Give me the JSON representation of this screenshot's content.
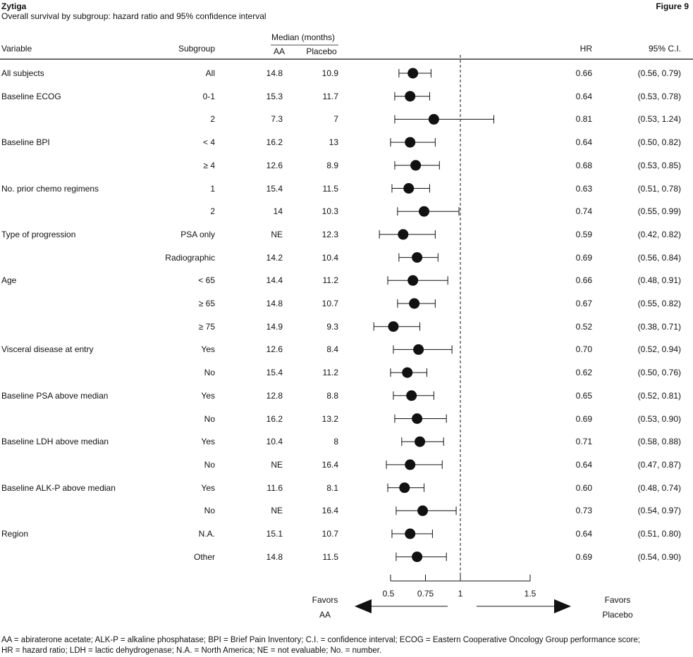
{
  "header": {
    "title": "Zytiga",
    "subtitle": "Overall survival by subgroup: hazard ratio and 95% confidence interval",
    "figure_label": "Figure 9"
  },
  "columns": {
    "variable": "Variable",
    "subgroup": "Subgroup",
    "median_group": "Median (months)",
    "aa": "AA",
    "placebo": "Placebo",
    "hr": "HR",
    "ci": "95%  C.I."
  },
  "chart_data": {
    "type": "forest",
    "xlim": [
      0.5,
      1.5
    ],
    "reference_line": 1,
    "x_ticks": [
      0.5,
      0.75,
      1,
      1.5
    ],
    "x_tick_labels": [
      "0.5",
      "0.75",
      "1",
      "1.5"
    ],
    "favors_left": [
      "Favors",
      "AA"
    ],
    "favors_right": [
      "Favors",
      "Placebo"
    ],
    "rows": [
      {
        "variable": "All subjects",
        "subgroup": "All",
        "aa": "14.8",
        "placebo": "10.9",
        "hr": 0.66,
        "lo": 0.56,
        "hi": 0.79,
        "hr_text": "0.66",
        "ci_text": "(0.56,  0.79)"
      },
      {
        "variable": "Baseline ECOG",
        "subgroup": "0-1",
        "aa": "15.3",
        "placebo": "11.7",
        "hr": 0.64,
        "lo": 0.53,
        "hi": 0.78,
        "hr_text": "0.64",
        "ci_text": "(0.53,  0.78)"
      },
      {
        "variable": "",
        "subgroup": "2",
        "aa": "7.3",
        "placebo": "7",
        "hr": 0.81,
        "lo": 0.53,
        "hi": 1.24,
        "hr_text": "0.81",
        "ci_text": "(0.53,  1.24)"
      },
      {
        "variable": "Baseline BPI",
        "subgroup": "< 4",
        "aa": "16.2",
        "placebo": "13",
        "hr": 0.64,
        "lo": 0.5,
        "hi": 0.82,
        "hr_text": "0.64",
        "ci_text": "(0.50,  0.82)"
      },
      {
        "variable": "",
        "subgroup": "≥ 4",
        "aa": "12.6",
        "placebo": "8.9",
        "hr": 0.68,
        "lo": 0.53,
        "hi": 0.85,
        "hr_text": "0.68",
        "ci_text": "(0.53,  0.85)"
      },
      {
        "variable": "No. prior chemo regimens",
        "subgroup": "1",
        "aa": "15.4",
        "placebo": "11.5",
        "hr": 0.63,
        "lo": 0.51,
        "hi": 0.78,
        "hr_text": "0.63",
        "ci_text": "(0.51, 0.78)"
      },
      {
        "variable": "",
        "subgroup": "2",
        "aa": "14",
        "placebo": "10.3",
        "hr": 0.74,
        "lo": 0.55,
        "hi": 0.99,
        "hr_text": "0.74",
        "ci_text": "(0.55, 0.99)"
      },
      {
        "variable": "Type of progression",
        "subgroup": "PSA only",
        "aa": "NE",
        "placebo": "12.3",
        "hr": 0.59,
        "lo": 0.42,
        "hi": 0.82,
        "hr_text": "0.59",
        "ci_text": "(0.42,  0.82)"
      },
      {
        "variable": "",
        "subgroup": "Radiographic",
        "aa": "14.2",
        "placebo": "10.4",
        "hr": 0.69,
        "lo": 0.56,
        "hi": 0.84,
        "hr_text": "0.69",
        "ci_text": "(0.56,  0.84)"
      },
      {
        "variable": "Age",
        "subgroup": "< 65",
        "aa": "14.4",
        "placebo": "11.2",
        "hr": 0.66,
        "lo": 0.48,
        "hi": 0.91,
        "hr_text": "0.66",
        "ci_text": "(0.48,  0.91)"
      },
      {
        "variable": "",
        "subgroup": "≥ 65",
        "aa": "14.8",
        "placebo": "10.7",
        "hr": 0.67,
        "lo": 0.55,
        "hi": 0.82,
        "hr_text": "0.67",
        "ci_text": "(0.55,  0.82)"
      },
      {
        "variable": "",
        "subgroup": "≥ 75",
        "aa": "14.9",
        "placebo": "9.3",
        "hr": 0.52,
        "lo": 0.38,
        "hi": 0.71,
        "hr_text": "0.52",
        "ci_text": "(0.38,  0.71)"
      },
      {
        "variable": "Visceral disease at entry",
        "subgroup": "Yes",
        "aa": "12.6",
        "placebo": "8.4",
        "hr": 0.7,
        "lo": 0.52,
        "hi": 0.94,
        "hr_text": "0.70",
        "ci_text": "(0.52,  0.94)"
      },
      {
        "variable": "",
        "subgroup": "No",
        "aa": "15.4",
        "placebo": "11.2",
        "hr": 0.62,
        "lo": 0.5,
        "hi": 0.76,
        "hr_text": "0.62",
        "ci_text": "(0.50,  0.76)"
      },
      {
        "variable": "Baseline PSA above median",
        "subgroup": "Yes",
        "aa": "12.8",
        "placebo": "8.8",
        "hr": 0.65,
        "lo": 0.52,
        "hi": 0.81,
        "hr_text": "0.65",
        "ci_text": "(0.52,  0.81)"
      },
      {
        "variable": "",
        "subgroup": "No",
        "aa": "16.2",
        "placebo": "13.2",
        "hr": 0.69,
        "lo": 0.53,
        "hi": 0.9,
        "hr_text": "0.69",
        "ci_text": "(0.53,  0.90)"
      },
      {
        "variable": "Baseline LDH above median",
        "subgroup": "Yes",
        "aa": "10.4",
        "placebo": "8",
        "hr": 0.71,
        "lo": 0.58,
        "hi": 0.88,
        "hr_text": "0.71",
        "ci_text": "(0.58,  0.88)"
      },
      {
        "variable": "",
        "subgroup": "No",
        "aa": "NE",
        "placebo": "16.4",
        "hr": 0.64,
        "lo": 0.47,
        "hi": 0.87,
        "hr_text": "0.64",
        "ci_text": "(0.47,  0.87)"
      },
      {
        "variable": "Baseline ALK-P above median",
        "subgroup": "Yes",
        "aa": "11.6",
        "placebo": "8.1",
        "hr": 0.6,
        "lo": 0.48,
        "hi": 0.74,
        "hr_text": "0.60",
        "ci_text": "(0.48,  0.74)"
      },
      {
        "variable": "",
        "subgroup": "No",
        "aa": "NE",
        "placebo": "16.4",
        "hr": 0.73,
        "lo": 0.54,
        "hi": 0.97,
        "hr_text": "0.73",
        "ci_text": "(0.54,  0.97)"
      },
      {
        "variable": "Region",
        "subgroup": "N.A.",
        "aa": "15.1",
        "placebo": "10.7",
        "hr": 0.64,
        "lo": 0.51,
        "hi": 0.8,
        "hr_text": "0.64",
        "ci_text": "(0.51,  0.80)"
      },
      {
        "variable": "",
        "subgroup": "Other",
        "aa": "14.8",
        "placebo": "11.5",
        "hr": 0.69,
        "lo": 0.54,
        "hi": 0.9,
        "hr_text": "0.69",
        "ci_text": "(0.54,  0.90)"
      }
    ]
  },
  "footnote": {
    "line1": "AA = abiraterone acetate; ALK-P = alkaline phosphatase; BPI = Brief Pain Inventory; C.I. = confidence interval; ECOG = Eastern Cooperative Oncology Group performance score;",
    "line2": "HR = hazard ratio; LDH = lactic dehydrogenase; N.A. = North America; NE = not evaluable; No. = number."
  }
}
